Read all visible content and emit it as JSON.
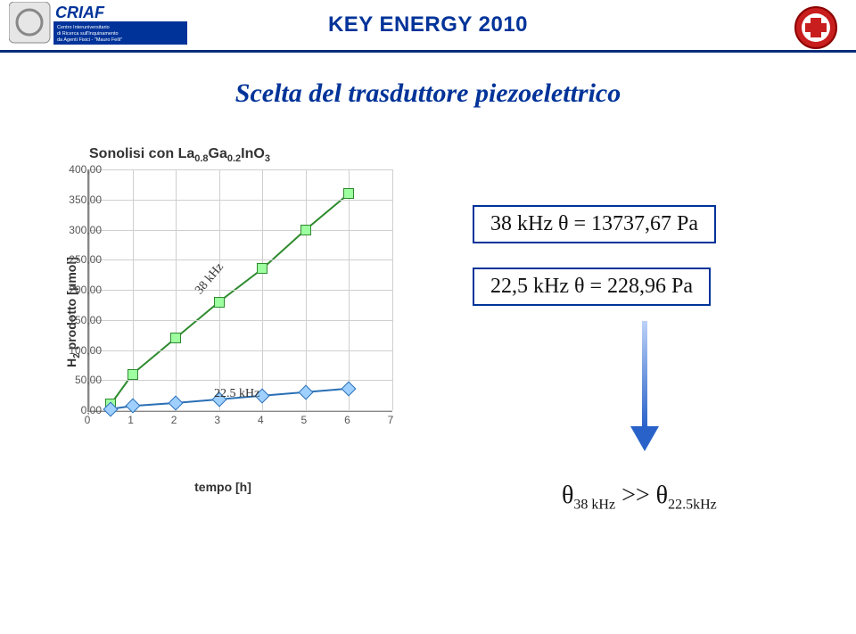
{
  "header": {
    "title": "KEY ENERGY 2010",
    "rule_color": "#002b7a"
  },
  "logos": {
    "left_abbrev": "CRIAF",
    "left_sub": "Centro Interuniversitario\n di Ricerca sull'Inquinamento\n da Agenti Fisici - \"Mauro Felli\"",
    "right_kind": "university-crest"
  },
  "slide": {
    "title": "Scelta del trasduttore piezoelettrico"
  },
  "chart": {
    "type": "line+scatter",
    "title_main": "Sonolisi ",
    "title_connector": "con  ",
    "title_compound_pre": "La",
    "title_sub1": "0.8",
    "title_mid": "Ga",
    "title_sub2": "0.2",
    "title_tail": "InO",
    "title_sub3": "3",
    "ylabel_pre": "H",
    "ylabel_sub": "2",
    "ylabel_post": " prodotto  [μmol]",
    "xlabel": "tempo [h]",
    "ylim": [
      0,
      400
    ],
    "y_ticks": [
      "0,00",
      "50,00",
      "100,00",
      "150,00",
      "200,00",
      "250,00",
      "300,00",
      "350,00",
      "400,00"
    ],
    "y_tick_values": [
      0,
      50,
      100,
      150,
      200,
      250,
      300,
      350,
      400
    ],
    "xlim": [
      0,
      7
    ],
    "x_ticks": [
      "0",
      "1",
      "2",
      "3",
      "4",
      "5",
      "6",
      "7"
    ],
    "x_tick_values": [
      0,
      1,
      2,
      3,
      4,
      5,
      6,
      7
    ],
    "series": {
      "s38": {
        "label": "38 kHz",
        "color": "#2e8b2e",
        "marker": "square",
        "x": [
          0.5,
          1,
          2,
          3,
          4,
          5,
          6
        ],
        "y": [
          10,
          60,
          120,
          180,
          235,
          300,
          360
        ]
      },
      "s22": {
        "label": "22.5 kHz",
        "color": "#2a6fb5",
        "marker": "diamond",
        "x": [
          0.5,
          1,
          2,
          3,
          4,
          5,
          6
        ],
        "y": [
          2,
          7,
          12,
          18,
          24,
          30,
          36
        ]
      }
    },
    "annotations": {
      "a38": "38 kHz",
      "a22": "22.5 kHz"
    },
    "grid_color": "#cfcfcf",
    "axis_color": "#888888",
    "background": "#ffffff"
  },
  "results": {
    "top": "38 kHz     θ = 13737,67 Pa",
    "bottom": "22,5 kHz  θ =     228,96 Pa"
  },
  "formula": {
    "theta1_pre": "θ",
    "theta1_sub": "38 kHz",
    "gg": " >> ",
    "theta2_pre": "θ",
    "theta2_sub": "22.5kHz"
  },
  "colors": {
    "accent": "#003399",
    "arrow_top": "#bcd1f7",
    "arrow_bottom": "#2962c9"
  }
}
